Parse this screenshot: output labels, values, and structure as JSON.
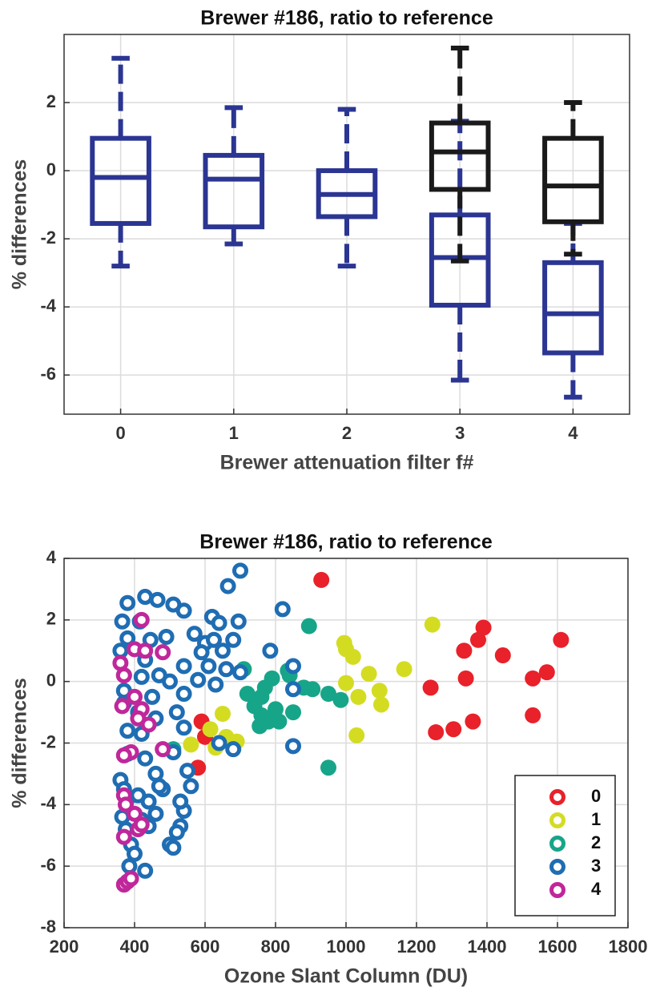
{
  "chart_data": [
    {
      "type": "box",
      "title": "Brewer #186, ratio to reference",
      "xlabel": "Brewer attenuation filter f#",
      "ylabel": "% differences",
      "xlim": [
        -0.5,
        4.5
      ],
      "xticks": [
        0,
        1,
        2,
        3,
        4
      ],
      "ylim": [
        -7.15,
        4
      ],
      "yticks": [
        -6,
        -4,
        -2,
        0,
        2
      ],
      "grid": true,
      "series": [
        {
          "color": "#2b3592",
          "x": [
            0,
            1,
            2,
            3,
            4
          ],
          "whisker_low": [
            -2.8,
            -2.15,
            -2.8,
            -6.15,
            -6.65
          ],
          "q1": [
            -1.55,
            -1.65,
            -1.35,
            -3.95,
            -5.35
          ],
          "median": [
            -0.2,
            -0.25,
            -0.7,
            -2.55,
            -4.2
          ],
          "q3": [
            0.95,
            0.45,
            0.0,
            -1.3,
            -2.7
          ],
          "whisker_high": [
            3.3,
            1.85,
            1.8,
            1.45,
            -1.55
          ]
        },
        {
          "color": "#1a1a1a",
          "x": [
            3,
            4
          ],
          "whisker_low": [
            -2.65,
            -2.45
          ],
          "q1": [
            -0.55,
            -1.5
          ],
          "median": [
            0.55,
            -0.45
          ],
          "q3": [
            1.4,
            0.95
          ],
          "whisker_high": [
            3.6,
            2.0
          ]
        }
      ]
    },
    {
      "type": "scatter",
      "title": "Brewer #186, ratio to reference",
      "xlabel": "Ozone Slant Column (DU)",
      "ylabel": "% differences",
      "xlim": [
        200,
        1800
      ],
      "xticks": [
        200,
        400,
        600,
        800,
        1000,
        1200,
        1400,
        1600,
        1800
      ],
      "ylim": [
        -8,
        4
      ],
      "yticks": [
        -8,
        -6,
        -4,
        -2,
        0,
        2,
        4
      ],
      "grid": true,
      "legend": "lower right",
      "series": [
        {
          "name": "0",
          "color": "#e8212a",
          "filled": true,
          "x": [
            930,
            1390,
            1375,
            1610,
            1335,
            1445,
            1570,
            1530,
            1340,
            1240,
            1530,
            1360,
            1305,
            1255,
            580,
            590,
            600
          ],
          "values": [
            3.3,
            1.75,
            1.35,
            1.35,
            1.0,
            0.85,
            0.3,
            0.1,
            0.1,
            -0.2,
            -1.1,
            -1.3,
            -1.55,
            -1.65,
            -2.8,
            -1.3,
            -1.8
          ]
        },
        {
          "name": "1",
          "color": "#d4dc22",
          "filled": true,
          "x": [
            1245,
            995,
            1000,
            1020,
            1165,
            1065,
            1000,
            1095,
            1035,
            1100,
            1030,
            650,
            615,
            660,
            630,
            690,
            560
          ],
          "values": [
            1.85,
            1.25,
            1.05,
            0.8,
            0.4,
            0.25,
            -0.05,
            -0.3,
            -0.5,
            -0.75,
            -1.75,
            -1.05,
            -1.55,
            -1.8,
            -2.15,
            -1.95,
            -2.05
          ]
        },
        {
          "name": "2",
          "color": "#17a589",
          "filled": true,
          "x": [
            895,
            710,
            835,
            840,
            790,
            770,
            880,
            905,
            720,
            760,
            950,
            985,
            740,
            800,
            850,
            760,
            780,
            755,
            810,
            950,
            510
          ],
          "values": [
            1.8,
            0.4,
            0.35,
            0.2,
            0.1,
            -0.2,
            -0.2,
            -0.25,
            -0.4,
            -0.5,
            -0.4,
            -0.6,
            -0.8,
            -0.9,
            -1.0,
            -1.1,
            -1.3,
            -1.45,
            -1.3,
            -2.8,
            -2.2
          ]
        },
        {
          "name": "3",
          "color": "#1f6db3",
          "filled": false,
          "x": [
            700,
            665,
            380,
            430,
            465,
            510,
            540,
            365,
            415,
            620,
            640,
            695,
            820,
            490,
            380,
            445,
            570,
            600,
            625,
            680,
            785,
            590,
            650,
            360,
            430,
            540,
            610,
            660,
            700,
            850,
            370,
            420,
            470,
            500,
            580,
            630,
            370,
            450,
            540,
            850,
            370,
            410,
            520,
            460,
            380,
            420,
            510,
            380,
            430,
            540,
            360,
            370,
            380,
            365,
            375,
            390,
            385,
            400,
            430,
            420,
            440,
            410,
            460,
            480,
            500,
            510,
            530,
            540,
            530,
            560,
            550,
            850,
            640,
            680,
            460,
            470,
            520,
            440
          ],
          "values": [
            3.6,
            3.1,
            2.55,
            2.75,
            2.65,
            2.5,
            2.3,
            1.95,
            1.95,
            2.1,
            1.9,
            1.95,
            2.35,
            1.45,
            1.4,
            1.35,
            1.55,
            1.25,
            1.35,
            1.35,
            1.0,
            0.95,
            1.0,
            1.0,
            0.7,
            0.5,
            0.5,
            0.4,
            0.3,
            0.5,
            0.2,
            0.15,
            0.2,
            0.0,
            0.05,
            -0.1,
            -0.3,
            -0.5,
            -0.4,
            -0.25,
            -0.7,
            -1.0,
            -1.0,
            -1.2,
            -1.6,
            -1.7,
            -2.3,
            -2.35,
            -2.5,
            -1.5,
            -3.2,
            -3.5,
            -3.8,
            -4.4,
            -4.8,
            -5.3,
            -6.0,
            -5.6,
            -6.15,
            -4.5,
            -3.9,
            -3.7,
            -4.3,
            -3.5,
            -5.3,
            -5.4,
            -4.7,
            -4.2,
            -3.9,
            -3.4,
            -2.9,
            -2.1,
            -2.0,
            -2.2,
            -3.0,
            -3.4,
            -4.9,
            -4.7
          ]
        },
        {
          "name": "4",
          "color": "#c0279a",
          "filled": false,
          "x": [
            420,
            400,
            430,
            480,
            360,
            370,
            365,
            400,
            420,
            410,
            440,
            390,
            370,
            480,
            370,
            375,
            400,
            410,
            420,
            370,
            370,
            380,
            390
          ],
          "values": [
            2.0,
            1.05,
            1.0,
            0.95,
            0.6,
            0.2,
            -0.8,
            -0.5,
            -0.9,
            -1.2,
            -1.4,
            -2.3,
            -2.4,
            -2.2,
            -3.7,
            -4.0,
            -4.3,
            -4.8,
            -4.65,
            -5.05,
            -6.6,
            -6.5,
            -6.4
          ]
        }
      ]
    }
  ]
}
